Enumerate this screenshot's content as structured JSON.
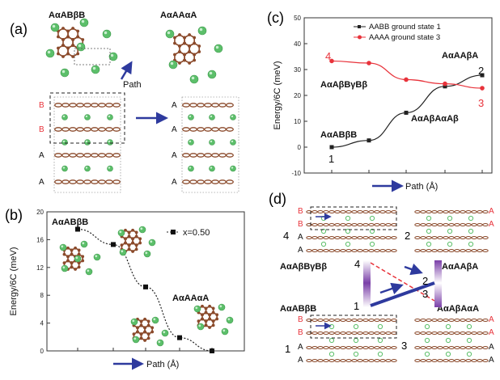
{
  "panel_a": {
    "label": "(a)",
    "left_title": "AαABβB",
    "right_title": "AαAAαA",
    "path_label": "Path",
    "left_layers": [
      "B",
      "B",
      "A",
      "A"
    ],
    "right_layers": [
      "A",
      "A",
      "A",
      "A"
    ]
  },
  "panel_b": {
    "label": "(b)",
    "start_label": "AαABβB",
    "end_label": "AαAAαA",
    "legend": "x=0.50",
    "xlabel": "Path (Å)"
  },
  "panel_c": {
    "label": "(c)",
    "ann_top_right": "AαAAβA",
    "ann_left_upper": "AαAβBγBβ",
    "ann_left_lower": "AαABβB",
    "ann_right_lower": "AαAβAαAβ",
    "end_labels": {
      "l1": "1",
      "l2": "2",
      "l3": "3",
      "l4": "4"
    },
    "xlabel": "Path (Å)"
  },
  "panel_d": {
    "label": "(d)",
    "lbl_1": "1",
    "lbl_2": "2",
    "lbl_3": "3",
    "lbl_4": "4",
    "mid_4": "4",
    "mid_1": "1",
    "mid_2": "2",
    "mid_3": "3",
    "name_4": "AαAβBγBβ",
    "name_2": "AαAAβA",
    "name_1": "AαABβB",
    "name_3": "AαAβAαA",
    "stack_4_left": [
      "B",
      "B",
      "A",
      "A"
    ],
    "stack_4_right": [
      "A",
      "A"
    ],
    "stack_1_left": [
      "B",
      "B",
      "A",
      "A"
    ],
    "stack_1_right": [
      "A",
      "A",
      "A",
      "A"
    ]
  },
  "colors": {
    "black_series": "#222222",
    "red_series": "#e8333b",
    "arrow_blue": "#2e3a9e",
    "carbon": "#8b4a2b",
    "chlorine": "#5cbf6a",
    "purple": "#8e5bb5"
  },
  "chart_data": [
    {
      "type": "scatter",
      "panel": "b",
      "ylabel": "Energy/6C (meV)",
      "xlabel": "Path (Å)",
      "ylim": [
        0,
        20
      ],
      "yticks": [
        0,
        4,
        8,
        12,
        16,
        20
      ],
      "legend_position": "top-right",
      "series": [
        {
          "name": "x=0.50",
          "style": "dotted-line-square-markers",
          "x": [
            0,
            1,
            2,
            3,
            4
          ],
          "y": [
            17.5,
            15.3,
            9.2,
            1.9,
            0.0
          ]
        }
      ]
    },
    {
      "type": "line",
      "panel": "c",
      "ylabel": "Energy/6C (meV)",
      "xlabel": "Path (Å)",
      "ylim": [
        -10,
        50
      ],
      "yticks": [
        -10,
        0,
        10,
        20,
        30,
        40,
        50
      ],
      "legend_position": "top-right",
      "series": [
        {
          "name": "AABB ground state 1",
          "color": "#222222",
          "marker": "square",
          "x": [
            0,
            1,
            2,
            3,
            4
          ],
          "y": [
            0.0,
            2.6,
            13.3,
            23.5,
            27.8
          ]
        },
        {
          "name": "AAAA ground state 3",
          "color": "#e8333b",
          "marker": "circle",
          "x": [
            0,
            1,
            2,
            3,
            4
          ],
          "y": [
            33.3,
            32.5,
            26.1,
            24.5,
            22.8
          ]
        }
      ]
    }
  ]
}
